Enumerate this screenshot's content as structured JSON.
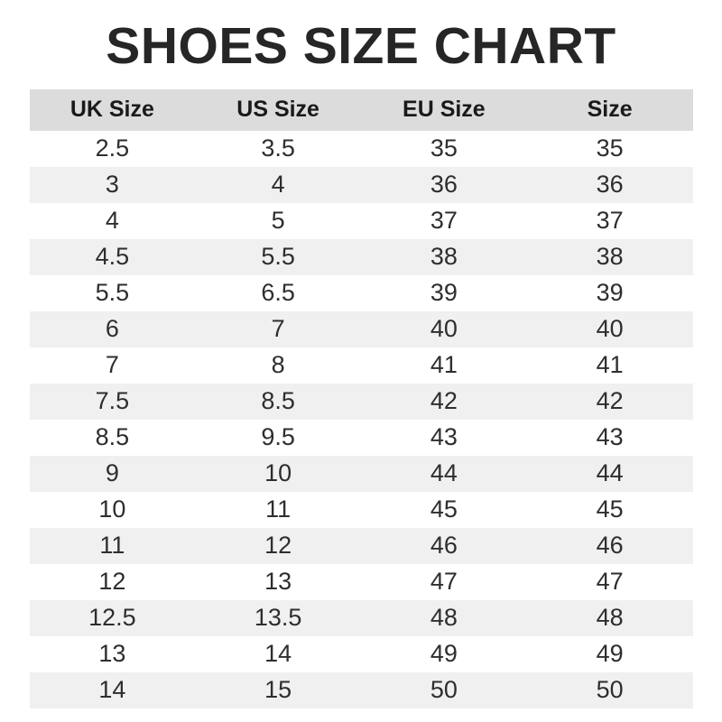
{
  "page": {
    "title": "SHOES SIZE CHART"
  },
  "colors": {
    "title_text": "#262626",
    "header_row_bg": "#dcdcdc",
    "stripe_row_bg": "#f0f0f0",
    "body_text": "#2e2e2e",
    "page_bg": "#ffffff"
  },
  "chart_data": {
    "type": "table",
    "title": "SHOES SIZE CHART",
    "columns": [
      "UK Size",
      "US Size",
      "EU Size",
      "Size"
    ],
    "rows": [
      [
        "2.5",
        "3.5",
        "35",
        "35"
      ],
      [
        "3",
        "4",
        "36",
        "36"
      ],
      [
        "4",
        "5",
        "37",
        "37"
      ],
      [
        "4.5",
        "5.5",
        "38",
        "38"
      ],
      [
        "5.5",
        "6.5",
        "39",
        "39"
      ],
      [
        "6",
        "7",
        "40",
        "40"
      ],
      [
        "7",
        "8",
        "41",
        "41"
      ],
      [
        "7.5",
        "8.5",
        "42",
        "42"
      ],
      [
        "8.5",
        "9.5",
        "43",
        "43"
      ],
      [
        "9",
        "10",
        "44",
        "44"
      ],
      [
        "10",
        "11",
        "45",
        "45"
      ],
      [
        "11",
        "12",
        "46",
        "46"
      ],
      [
        "12",
        "13",
        "47",
        "47"
      ],
      [
        "12.5",
        "13.5",
        "48",
        "48"
      ],
      [
        "13",
        "14",
        "49",
        "49"
      ],
      [
        "14",
        "15",
        "50",
        "50"
      ]
    ],
    "layout": {
      "striped": true,
      "first_data_row_bg": "white",
      "header_position": "top",
      "column_alignment": "center",
      "grid_lines": false
    }
  }
}
